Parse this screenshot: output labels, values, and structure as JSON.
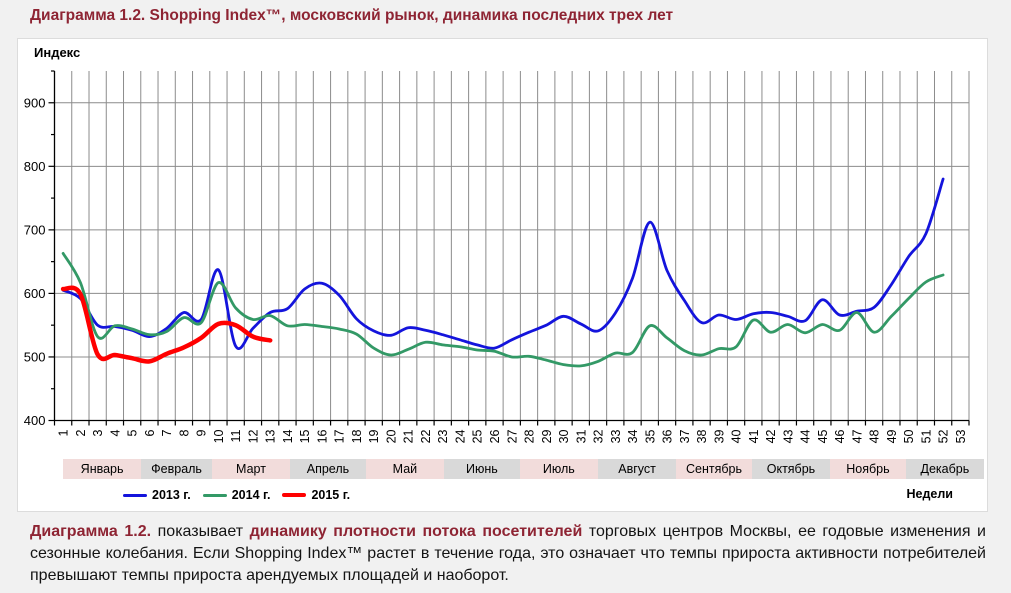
{
  "title": "Диаграмма 1.2. Shopping Index™, московский рынок, динамика последних трех лет",
  "chart": {
    "index_label": "Индекс",
    "weeks_label": "Недели"
  },
  "colors": {
    "maroon": "#8e2433",
    "grid": "#8c8c8c",
    "axis": "#000000",
    "month_pink": "#f2dcdb",
    "month_gray": "#d9d9d9",
    "panel_bg": "#ffffff",
    "page_bg": "#f1f1f1"
  },
  "chart_data": {
    "type": "line",
    "title": "Shopping Index, московский рынок, динамика последних трех лет",
    "xlabel": "Недели",
    "ylabel": "Индекс",
    "ylim": [
      400,
      950
    ],
    "yticks": [
      400,
      500,
      600,
      700,
      800,
      900
    ],
    "grid": true,
    "legend_position": "bottom-left",
    "x": [
      1,
      2,
      3,
      4,
      5,
      6,
      7,
      8,
      9,
      10,
      11,
      12,
      13,
      14,
      15,
      16,
      17,
      18,
      19,
      20,
      21,
      22,
      23,
      24,
      25,
      26,
      27,
      28,
      29,
      30,
      31,
      32,
      33,
      34,
      35,
      36,
      37,
      38,
      39,
      40,
      41,
      42,
      43,
      44,
      45,
      46,
      47,
      48,
      49,
      50,
      51,
      52,
      53
    ],
    "series": [
      {
        "name": "2013 г.",
        "color": "#1414dc",
        "width": 2.8,
        "values": [
          605,
          592,
          550,
          548,
          542,
          532,
          545,
          570,
          559,
          637,
          517,
          545,
          570,
          576,
          607,
          616,
          597,
          560,
          541,
          534,
          546,
          542,
          535,
          527,
          519,
          514,
          527,
          539,
          550,
          564,
          552,
          541,
          569,
          624,
          712,
          636,
          589,
          554,
          566,
          559,
          568,
          570,
          564,
          557,
          590,
          566,
          572,
          578,
          614,
          658,
          694,
          780
        ]
      },
      {
        "name": "2014 г.",
        "color": "#339966",
        "width": 2.8,
        "values": [
          663,
          617,
          532,
          549,
          544,
          535,
          540,
          562,
          554,
          617,
          577,
          559,
          565,
          549,
          551,
          548,
          544,
          536,
          514,
          503,
          512,
          523,
          519,
          516,
          511,
          509,
          500,
          501,
          495,
          488,
          486,
          493,
          506,
          507,
          549,
          530,
          510,
          503,
          513,
          516,
          558,
          539,
          551,
          538,
          551,
          542,
          570,
          539,
          564,
          592,
          618,
          629
        ]
      },
      {
        "name": "2015 г.",
        "color": "#ff0000",
        "width": 4.5,
        "values": [
          607,
          599,
          504,
          503,
          498,
          493,
          505,
          515,
          530,
          552,
          550,
          532,
          526
        ]
      }
    ],
    "months": [
      {
        "label": "Январь",
        "days": 31,
        "bg": "#f2dcdb"
      },
      {
        "label": "Февраль",
        "days": 28,
        "bg": "#d9d9d9"
      },
      {
        "label": "Март",
        "days": 31,
        "bg": "#f2dcdb"
      },
      {
        "label": "Апрель",
        "days": 30,
        "bg": "#d9d9d9"
      },
      {
        "label": "Май",
        "days": 31,
        "bg": "#f2dcdb"
      },
      {
        "label": "Июнь",
        "days": 30,
        "bg": "#d9d9d9"
      },
      {
        "label": "Июль",
        "days": 31,
        "bg": "#f2dcdb"
      },
      {
        "label": "Август",
        "days": 31,
        "bg": "#d9d9d9"
      },
      {
        "label": "Сентябрь",
        "days": 30,
        "bg": "#f2dcdb"
      },
      {
        "label": "Октябрь",
        "days": 31,
        "bg": "#d9d9d9"
      },
      {
        "label": "Ноябрь",
        "days": 30,
        "bg": "#f2dcdb"
      },
      {
        "label": "Декабрь",
        "days": 31,
        "bg": "#d9d9d9"
      }
    ]
  },
  "caption": {
    "parts": [
      {
        "text": "Диаграмма 1.2.",
        "style": "maroon-bold"
      },
      {
        "text": " показывает ",
        "style": "normal"
      },
      {
        "text": "динамику плотности потока посетителей",
        "style": "maroon-bold"
      },
      {
        "text": " торговых центров Москвы, ее годовые изменения и сезонные колебания. Если Shopping Index™ растет в течение года, это означает что темпы прироста активности потребителей превышают темпы прироста арендуемых площадей и наоборот.",
        "style": "normal"
      }
    ]
  }
}
